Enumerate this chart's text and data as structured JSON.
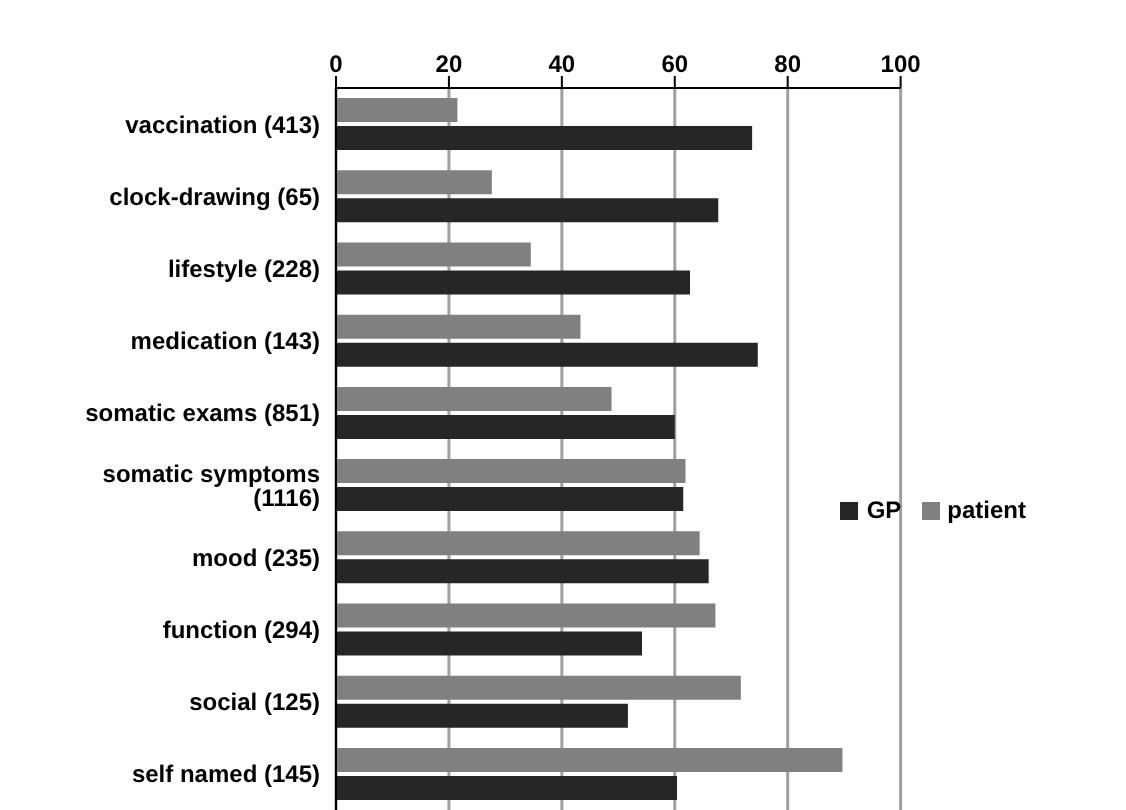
{
  "chart_data": {
    "type": "bar",
    "orientation": "horizontal",
    "categories": [
      "vaccination (413)",
      "clock-drawing (65)",
      "lifestyle (228)",
      "medication (143)",
      "somatic exams (851)",
      "somatic symptoms (1116)",
      "mood (235)",
      "function (294)",
      "social (125)",
      "self named (145)"
    ],
    "series": [
      {
        "name": "patient",
        "color": "#808080",
        "values": [
          21.5,
          27.6,
          34.5,
          43.3,
          48.8,
          61.9,
          64.4,
          67.2,
          71.7,
          89.7
        ]
      },
      {
        "name": "GP",
        "color": "#262626",
        "values": [
          73.7,
          67.7,
          62.7,
          74.7,
          60.0,
          61.5,
          66.0,
          54.2,
          51.7,
          60.4
        ]
      }
    ],
    "xlim": [
      0,
      100
    ],
    "xticks": [
      0,
      20,
      40,
      60,
      80,
      100
    ],
    "grid": "x",
    "legend": "right"
  }
}
